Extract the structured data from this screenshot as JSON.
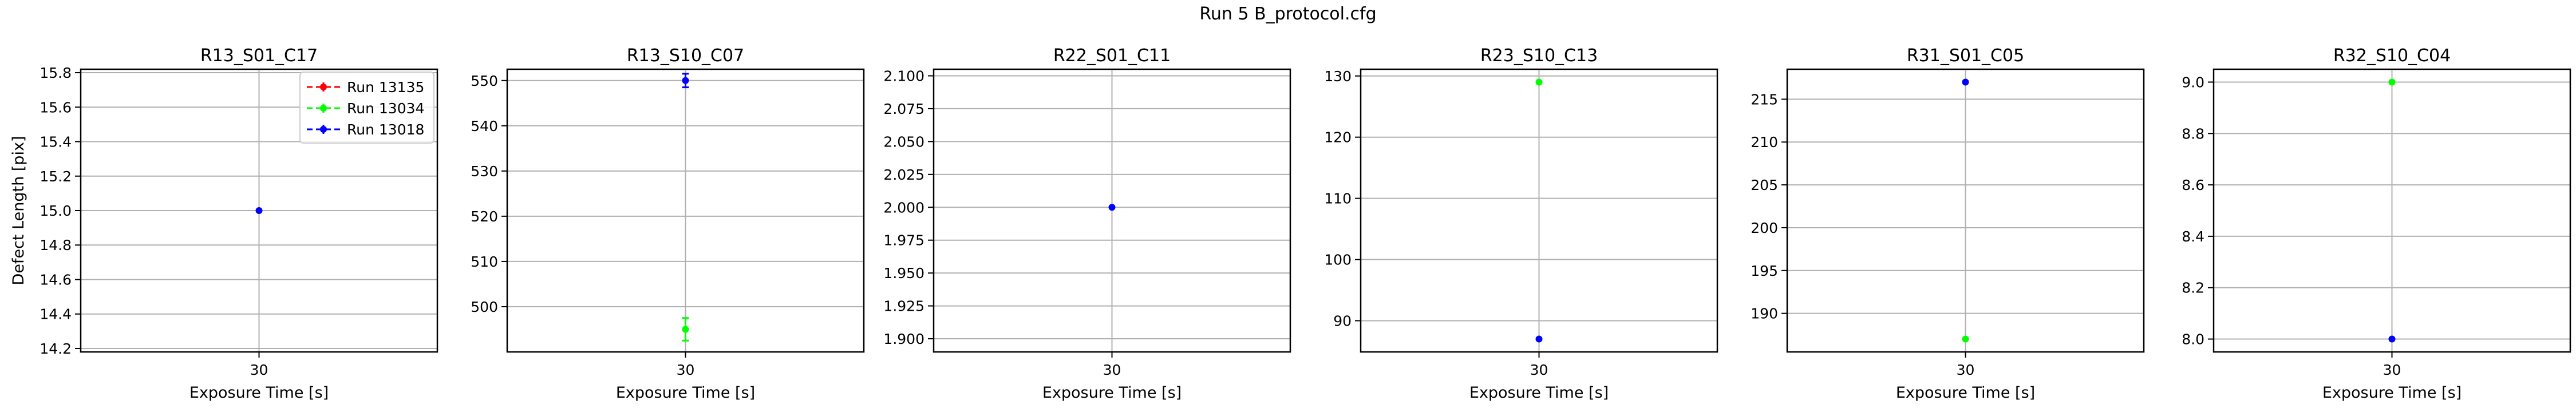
{
  "suptitle": "Run 5 B_protocol.cfg",
  "legend": {
    "placement": "upper-right",
    "entries": [
      {
        "name": "Run 13135",
        "color": "#ff0000"
      },
      {
        "name": "Run 13034",
        "color": "#00ff00"
      },
      {
        "name": "Run 13018",
        "color": "#0000ff"
      }
    ]
  },
  "chart_data": [
    {
      "type": "scatter",
      "title": "R13_S01_C17",
      "xlabel": "Exposure Time [s]",
      "ylabel": "Defect Length [pix]",
      "x_ticks": [
        "30"
      ],
      "xlim": [
        29,
        31
      ],
      "ylim": [
        14.18,
        15.82
      ],
      "y_ticks": [
        "14.2",
        "14.4",
        "14.6",
        "14.8",
        "15.0",
        "15.2",
        "15.4",
        "15.6",
        "15.8"
      ],
      "grid": true,
      "series": [
        {
          "name": "Run 13135",
          "color": "#ff0000",
          "points": []
        },
        {
          "name": "Run 13034",
          "color": "#00ff00",
          "points": []
        },
        {
          "name": "Run 13018",
          "color": "#0000ff",
          "points": [
            {
              "x": 30,
              "y": 15.0,
              "err": 0
            }
          ]
        }
      ]
    },
    {
      "type": "scatter",
      "title": "R13_S10_C07",
      "xlabel": "Exposure Time [s]",
      "ylabel": "",
      "x_ticks": [
        "30"
      ],
      "xlim": [
        29,
        31
      ],
      "ylim": [
        490,
        552.5
      ],
      "y_ticks": [
        "500",
        "510",
        "520",
        "530",
        "540",
        "550"
      ],
      "grid": true,
      "series": [
        {
          "name": "Run 13135",
          "color": "#ff0000",
          "points": []
        },
        {
          "name": "Run 13034",
          "color": "#00ff00",
          "points": [
            {
              "x": 30,
              "y": 495,
              "err": 2.5
            }
          ]
        },
        {
          "name": "Run 13018",
          "color": "#0000ff",
          "points": [
            {
              "x": 30,
              "y": 550,
              "err": 1.5
            }
          ]
        }
      ]
    },
    {
      "type": "scatter",
      "title": "R22_S01_C11",
      "xlabel": "Exposure Time [s]",
      "ylabel": "",
      "x_ticks": [
        "30"
      ],
      "xlim": [
        29,
        31
      ],
      "ylim": [
        1.89,
        2.105
      ],
      "y_ticks": [
        "1.900",
        "1.925",
        "1.950",
        "1.975",
        "2.000",
        "2.025",
        "2.050",
        "2.075",
        "2.100"
      ],
      "grid": true,
      "series": [
        {
          "name": "Run 13135",
          "color": "#ff0000",
          "points": []
        },
        {
          "name": "Run 13034",
          "color": "#00ff00",
          "points": []
        },
        {
          "name": "Run 13018",
          "color": "#0000ff",
          "points": [
            {
              "x": 30,
              "y": 2.0,
              "err": 0
            }
          ]
        }
      ]
    },
    {
      "type": "scatter",
      "title": "R23_S10_C13",
      "xlabel": "Exposure Time [s]",
      "ylabel": "",
      "x_ticks": [
        "30"
      ],
      "xlim": [
        29,
        31
      ],
      "ylim": [
        84.9,
        131.1
      ],
      "y_ticks": [
        "90",
        "100",
        "110",
        "120",
        "130"
      ],
      "grid": true,
      "series": [
        {
          "name": "Run 13135",
          "color": "#ff0000",
          "points": []
        },
        {
          "name": "Run 13034",
          "color": "#00ff00",
          "points": [
            {
              "x": 30,
              "y": 129,
              "err": 0
            }
          ]
        },
        {
          "name": "Run 13018",
          "color": "#0000ff",
          "points": [
            {
              "x": 30,
              "y": 87,
              "err": 0
            }
          ]
        }
      ]
    },
    {
      "type": "scatter",
      "title": "R31_S01_C05",
      "xlabel": "Exposure Time [s]",
      "ylabel": "",
      "x_ticks": [
        "30"
      ],
      "xlim": [
        29,
        31
      ],
      "ylim": [
        185.5,
        218.5
      ],
      "y_ticks": [
        "190",
        "195",
        "200",
        "205",
        "210",
        "215"
      ],
      "grid": true,
      "series": [
        {
          "name": "Run 13135",
          "color": "#ff0000",
          "points": []
        },
        {
          "name": "Run 13034",
          "color": "#00ff00",
          "points": [
            {
              "x": 30,
              "y": 187,
              "err": 0
            }
          ]
        },
        {
          "name": "Run 13018",
          "color": "#0000ff",
          "points": [
            {
              "x": 30,
              "y": 217,
              "err": 0
            }
          ]
        }
      ]
    },
    {
      "type": "scatter",
      "title": "R32_S10_C04",
      "xlabel": "Exposure Time [s]",
      "ylabel": "",
      "x_ticks": [
        "30"
      ],
      "xlim": [
        29,
        31
      ],
      "ylim": [
        7.95,
        9.05
      ],
      "y_ticks": [
        "8.0",
        "8.2",
        "8.4",
        "8.6",
        "8.8",
        "9.0"
      ],
      "grid": true,
      "series": [
        {
          "name": "Run 13135",
          "color": "#ff0000",
          "points": []
        },
        {
          "name": "Run 13034",
          "color": "#00ff00",
          "points": [
            {
              "x": 30,
              "y": 9.0,
              "err": 0
            }
          ]
        },
        {
          "name": "Run 13018",
          "color": "#0000ff",
          "points": [
            {
              "x": 30,
              "y": 8.0,
              "err": 0
            }
          ]
        }
      ]
    }
  ]
}
